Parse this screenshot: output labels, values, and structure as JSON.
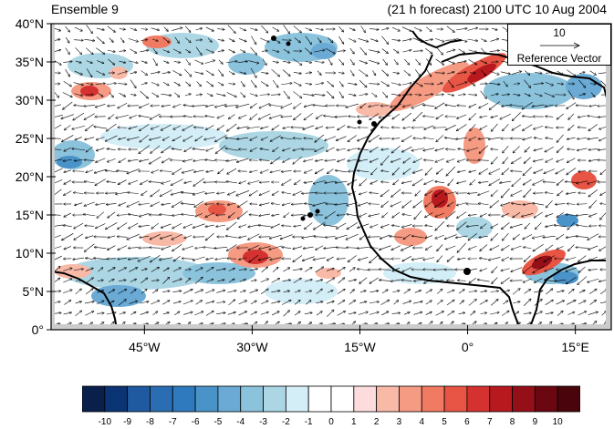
{
  "header": {
    "left_title": "Ensemble 9",
    "right_title": "(21 h forecast) 2100 UTC 10 Aug 2004"
  },
  "map": {
    "lat_labels": [
      "40°N",
      "35°N",
      "30°N",
      "25°N",
      "20°N",
      "15°N",
      "10°N",
      "5°N",
      "0°"
    ],
    "lon_labels": [
      "45°W",
      "30°W",
      "15°W",
      "0°",
      "15°E"
    ],
    "lat_range": [
      0,
      40
    ],
    "lon_range": [
      -58,
      20
    ]
  },
  "reference_vector": {
    "magnitude": "10",
    "label": "Reference Vector"
  },
  "colorbar": {
    "labels": [
      "-10",
      "-9",
      "-8",
      "-7",
      "-6",
      "-5",
      "-4",
      "-3",
      "-2",
      "-1",
      "0",
      "1",
      "2",
      "3",
      "4",
      "5",
      "6",
      "7",
      "8",
      "9",
      "10"
    ],
    "colors": [
      "#08204a",
      "#0b3474",
      "#1f5aa0",
      "#2b6db2",
      "#2f7abf",
      "#4a93c8",
      "#6aaad4",
      "#8cc3dc",
      "#acd6e4",
      "#d4eef7",
      "#ffffff",
      "#ffffff",
      "#fcdcdc",
      "#f9b9a7",
      "#f59a83",
      "#f17a62",
      "#e85545",
      "#d43230",
      "#b8191f",
      "#950f19",
      "#6b0711",
      "#4a040b"
    ]
  }
}
